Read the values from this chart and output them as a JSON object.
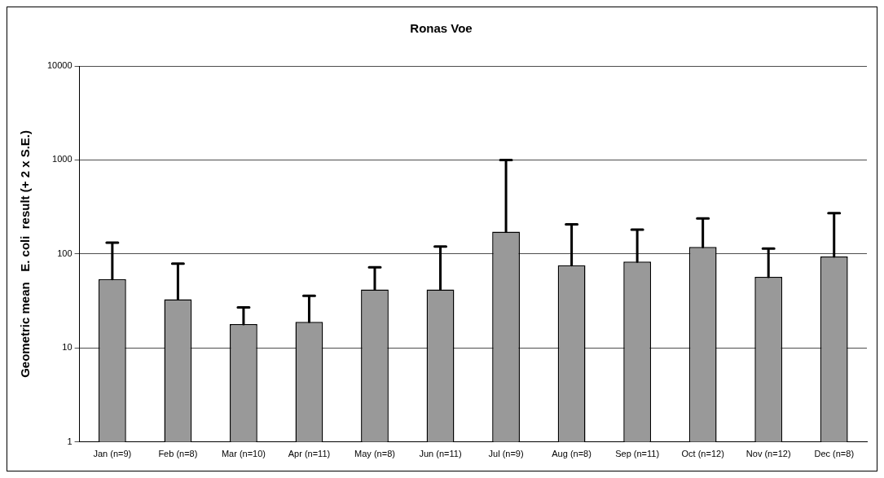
{
  "chart_data": {
    "type": "bar",
    "title": "Ronas Voe",
    "ylabel": "Geometric mean   E. coli  result (+ 2 x S.E.)",
    "categories": [
      "Jan (n=9)",
      "Feb (n=8)",
      "Mar (n=10)",
      "Apr (n=11)",
      "May (n=8)",
      "Jun (n=11)",
      "Jul (n=9)",
      "Aug (n=8)",
      "Sep (n=11)",
      "Oct (n=12)",
      "Nov (n=12)",
      "Dec (n=8)"
    ],
    "values": [
      54,
      33,
      18,
      19,
      42,
      42,
      173,
      76,
      83,
      119,
      57,
      94
    ],
    "errors": [
      [
        54,
        132
      ],
      [
        33,
        79
      ],
      [
        18,
        27
      ],
      [
        19,
        36
      ],
      [
        42,
        72
      ],
      [
        42,
        120
      ],
      [
        173,
        1000
      ],
      [
        76,
        207
      ],
      [
        83,
        182
      ],
      [
        119,
        239
      ],
      [
        57,
        114
      ],
      [
        94,
        272
      ]
    ],
    "color": "#999999",
    "log": "y",
    "ylim": [
      1,
      10000
    ],
    "yticks": [
      1,
      10,
      100,
      1000,
      10000
    ],
    "grid": "y",
    "legend": false
  }
}
